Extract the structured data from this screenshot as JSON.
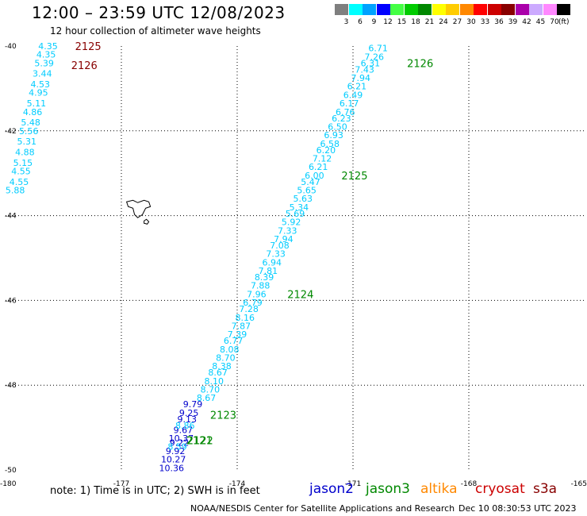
{
  "header": {
    "title": "12:00 – 23:59 UTC 12/08/2023",
    "subtitle": "12 hour collection of altimeter wave heights"
  },
  "scale": {
    "unit": "(ft)",
    "items": [
      {
        "label": "3",
        "color": "#7f7f7f"
      },
      {
        "label": "6",
        "color": "#00ffff"
      },
      {
        "label": "9",
        "color": "#00a2ff"
      },
      {
        "label": "12",
        "color": "#0000ff"
      },
      {
        "label": "15",
        "color": "#44ff44"
      },
      {
        "label": "18",
        "color": "#00cc00"
      },
      {
        "label": "21",
        "color": "#008800"
      },
      {
        "label": "24",
        "color": "#ffff00"
      },
      {
        "label": "27",
        "color": "#ffcc00"
      },
      {
        "label": "30",
        "color": "#ff8800"
      },
      {
        "label": "33",
        "color": "#ff0000"
      },
      {
        "label": "36",
        "color": "#cc0000"
      },
      {
        "label": "39",
        "color": "#880000"
      },
      {
        "label": "42",
        "color": "#aa00aa"
      },
      {
        "label": "45",
        "color": "#ccaaff"
      },
      {
        "label": "70",
        "color": "#ff88ff"
      },
      {
        "label": "",
        "color": "#000000"
      }
    ]
  },
  "axes": {
    "x_ticks": [
      "-180",
      "-177",
      "-174",
      "-171",
      "-168",
      "-165"
    ],
    "y_ticks": [
      "-40",
      "-42",
      "-44",
      "-46",
      "-48",
      "-50"
    ]
  },
  "map": {
    "lon_range": [
      -180,
      -165
    ],
    "lat_range": [
      -50,
      -40
    ],
    "grid": true,
    "tracks": [
      {
        "color": "#00ccff",
        "points": [
          {
            "lon": -178.9,
            "lat": -40.0,
            "v": "4.35"
          },
          {
            "lon": -178.95,
            "lat": -40.2,
            "v": "4.35"
          },
          {
            "lon": -179.0,
            "lat": -40.4,
            "v": "5.39"
          },
          {
            "lon": -179.05,
            "lat": -40.65,
            "v": "3.44"
          },
          {
            "lon": -179.1,
            "lat": -40.9,
            "v": "4.53"
          },
          {
            "lon": -179.15,
            "lat": -41.1,
            "v": "4.95"
          },
          {
            "lon": -179.2,
            "lat": -41.35,
            "v": "5.11"
          },
          {
            "lon": -179.3,
            "lat": -41.55,
            "v": "4.86"
          },
          {
            "lon": -179.35,
            "lat": -41.8,
            "v": "5.48"
          },
          {
            "lon": -179.4,
            "lat": -42.0,
            "v": "5.56"
          },
          {
            "lon": -179.45,
            "lat": -42.25,
            "v": "5.31"
          },
          {
            "lon": -179.5,
            "lat": -42.5,
            "v": "4.88"
          },
          {
            "lon": -179.55,
            "lat": -42.75,
            "v": "5.15"
          },
          {
            "lon": -179.6,
            "lat": -42.95,
            "v": "4.55"
          },
          {
            "lon": -179.65,
            "lat": -43.2,
            "v": "4.55"
          },
          {
            "lon": -179.75,
            "lat": -43.4,
            "v": "5.88"
          }
        ]
      },
      {
        "color": "#00ccff",
        "points": [
          {
            "lon": -170.35,
            "lat": -40.05,
            "v": "6.71"
          },
          {
            "lon": -170.45,
            "lat": -40.25,
            "v": "7.26"
          },
          {
            "lon": -170.55,
            "lat": -40.4,
            "v": "6.31"
          },
          {
            "lon": -170.7,
            "lat": -40.55,
            "v": "7.43"
          },
          {
            "lon": -170.8,
            "lat": -40.75,
            "v": "7.94"
          },
          {
            "lon": -170.9,
            "lat": -40.95,
            "v": "6.21"
          },
          {
            "lon": -171.0,
            "lat": -41.15,
            "v": "6.49"
          },
          {
            "lon": -171.1,
            "lat": -41.35,
            "v": "6.17"
          },
          {
            "lon": -171.2,
            "lat": -41.55,
            "v": "6.76"
          },
          {
            "lon": -171.3,
            "lat": -41.7,
            "v": "6.23"
          },
          {
            "lon": -171.4,
            "lat": -41.9,
            "v": "6.50"
          },
          {
            "lon": -171.5,
            "lat": -42.1,
            "v": "6.93"
          },
          {
            "lon": -171.6,
            "lat": -42.3,
            "v": "6.58"
          },
          {
            "lon": -171.7,
            "lat": -42.45,
            "v": "6.20"
          },
          {
            "lon": -171.8,
            "lat": -42.65,
            "v": "7.12"
          },
          {
            "lon": -171.9,
            "lat": -42.85,
            "v": "6.21"
          },
          {
            "lon": -172.0,
            "lat": -43.05,
            "v": "6.00"
          },
          {
            "lon": -172.1,
            "lat": -43.2,
            "v": "5.47"
          },
          {
            "lon": -172.2,
            "lat": -43.4,
            "v": "5.65"
          },
          {
            "lon": -172.3,
            "lat": -43.6,
            "v": "5.63"
          },
          {
            "lon": -172.4,
            "lat": -43.8,
            "v": "5.34"
          },
          {
            "lon": -172.5,
            "lat": -43.95,
            "v": "5.69"
          },
          {
            "lon": -172.6,
            "lat": -44.15,
            "v": "5.92"
          },
          {
            "lon": -172.7,
            "lat": -44.35,
            "v": "7.33"
          },
          {
            "lon": -172.8,
            "lat": -44.55,
            "v": "7.94"
          },
          {
            "lon": -172.9,
            "lat": -44.7,
            "v": "7.08"
          },
          {
            "lon": -173.0,
            "lat": -44.9,
            "v": "7.33"
          },
          {
            "lon": -173.1,
            "lat": -45.1,
            "v": "6.94"
          },
          {
            "lon": -173.2,
            "lat": -45.3,
            "v": "7.81"
          },
          {
            "lon": -173.3,
            "lat": -45.45,
            "v": "8.39"
          },
          {
            "lon": -173.4,
            "lat": -45.65,
            "v": "7.88"
          },
          {
            "lon": -173.5,
            "lat": -45.85,
            "v": "7.96"
          },
          {
            "lon": -173.6,
            "lat": -46.05,
            "v": "6.79"
          },
          {
            "lon": -173.7,
            "lat": -46.2,
            "v": "7.28"
          },
          {
            "lon": -173.8,
            "lat": -46.4,
            "v": "8.16"
          },
          {
            "lon": -173.9,
            "lat": -46.6,
            "v": "7.87"
          },
          {
            "lon": -174.0,
            "lat": -46.8,
            "v": "7.39"
          },
          {
            "lon": -174.1,
            "lat": -46.95,
            "v": "6.77"
          },
          {
            "lon": -174.2,
            "lat": -47.15,
            "v": "8.08"
          },
          {
            "lon": -174.3,
            "lat": -47.35,
            "v": "8.70"
          },
          {
            "lon": -174.4,
            "lat": -47.55,
            "v": "8.38"
          },
          {
            "lon": -174.5,
            "lat": -47.7,
            "v": "8.67"
          },
          {
            "lon": -174.6,
            "lat": -47.9,
            "v": "8.10"
          },
          {
            "lon": -174.7,
            "lat": -48.1,
            "v": "8.70"
          },
          {
            "lon": -174.8,
            "lat": -48.3,
            "v": "8.67"
          }
        ]
      },
      {
        "color": "#0000cc",
        "points": [
          {
            "lon": -175.15,
            "lat": -48.45,
            "v": "9.79"
          },
          {
            "lon": -175.25,
            "lat": -48.65,
            "v": "9.25"
          },
          {
            "lon": -175.3,
            "lat": -48.8,
            "v": "9.13"
          },
          {
            "lon": -175.4,
            "lat": -49.05,
            "v": "9.67"
          },
          {
            "lon": -175.45,
            "lat": -49.25,
            "v": "10.37"
          },
          {
            "lon": -175.5,
            "lat": -49.35,
            "v": "9.22"
          },
          {
            "lon": -175.6,
            "lat": -49.55,
            "v": "9.92"
          },
          {
            "lon": -175.65,
            "lat": -49.75,
            "v": "10.27"
          },
          {
            "lon": -175.7,
            "lat": -49.95,
            "v": "10.36"
          }
        ]
      },
      {
        "color": "#00ccff",
        "points": [
          {
            "lon": -175.35,
            "lat": -48.95,
            "v": "8.86"
          },
          {
            "lon": -175.55,
            "lat": -49.45,
            "v": "8.59"
          }
        ]
      }
    ],
    "pass_labels": [
      {
        "text": "2125",
        "color": "#880000",
        "lon": -178.2,
        "lat": -40.0
      },
      {
        "text": "2126",
        "color": "#880000",
        "lon": -178.3,
        "lat": -40.45
      },
      {
        "text": "2126",
        "color": "#008800",
        "lon": -169.6,
        "lat": -40.4
      },
      {
        "text": "2125",
        "color": "#008800",
        "lon": -171.3,
        "lat": -43.05
      },
      {
        "text": "2124",
        "color": "#008800",
        "lon": -172.7,
        "lat": -45.85
      },
      {
        "text": "2123",
        "color": "#008800",
        "lon": -174.7,
        "lat": -48.7
      },
      {
        "text": "2122",
        "color": "#008800",
        "lon": -175.3,
        "lat": -49.3
      },
      {
        "text": "2121",
        "color": "#008800",
        "lon": -175.32,
        "lat": -49.3
      }
    ]
  },
  "footer": {
    "note": "note: 1) Time is in UTC; 2) SWH is in feet",
    "legend": [
      {
        "name": "jason2",
        "color": "#0000cc"
      },
      {
        "name": "jason3",
        "color": "#008800"
      },
      {
        "name": "altika",
        "color": "#ff8800"
      },
      {
        "name": "cryosat",
        "color": "#cc0000"
      },
      {
        "name": "s3a",
        "color": "#880000"
      }
    ],
    "credit": "NOAA/NESDIS Center for Satellite Applications and Research",
    "timestamp": "Dec 10 08:30:53 UTC 2023"
  }
}
